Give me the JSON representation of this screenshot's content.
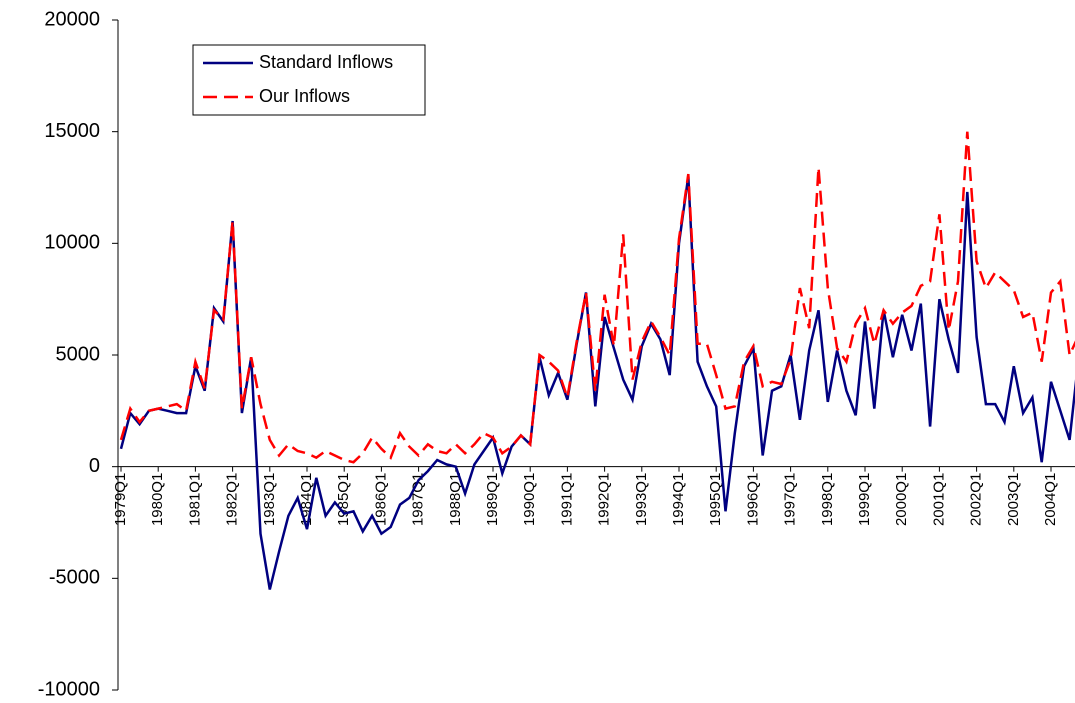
{
  "chart_data": {
    "type": "line",
    "categories": [
      "1979Q1",
      null,
      null,
      null,
      "1980Q1",
      null,
      null,
      null,
      "1981Q1",
      null,
      null,
      null,
      "1982Q1",
      null,
      null,
      null,
      "1983Q1",
      null,
      null,
      null,
      "1984Q1",
      null,
      null,
      null,
      "1985Q1",
      null,
      null,
      null,
      "1986Q1",
      null,
      null,
      null,
      "1987Q1",
      null,
      null,
      null,
      "1988Q1",
      null,
      null,
      null,
      "1989Q1",
      null,
      null,
      null,
      "1990Q1",
      null,
      null,
      null,
      "1991Q1",
      null,
      null,
      null,
      "1992Q1",
      null,
      null,
      null,
      "1993Q1",
      null,
      null,
      null,
      "1994Q1",
      null,
      null,
      null,
      "1995Q1",
      null,
      null,
      null,
      "1996Q1",
      null,
      null,
      null,
      "1997Q1",
      null,
      null,
      null,
      "1998Q1",
      null,
      null,
      null,
      "1999Q1",
      null,
      null,
      null,
      "2000Q1",
      null,
      null,
      null,
      "2001Q1",
      null,
      null,
      null,
      "2002Q1",
      null,
      null,
      null,
      "2003Q1",
      null,
      null,
      null,
      "2004Q1",
      null,
      null,
      null
    ],
    "series": [
      {
        "name": "Standard Inflows",
        "color": "#000080",
        "dash": false,
        "values": [
          800,
          2400,
          1900,
          2500,
          2600,
          2500,
          2400,
          2400,
          4500,
          3400,
          7100,
          6500,
          11000,
          2400,
          4900,
          -3000,
          -5500,
          -3800,
          -2200,
          -1400,
          -2800,
          -500,
          -2200,
          -1600,
          -2100,
          -2000,
          -2900,
          -2200,
          -3000,
          -2700,
          -1700,
          -1400,
          -600,
          -200,
          300,
          100,
          0,
          -1200,
          100,
          700,
          1300,
          -300,
          900,
          1400,
          1000,
          4900,
          3200,
          4200,
          3000,
          5500,
          7800,
          2700,
          6700,
          5300,
          3900,
          3000,
          5400,
          6400,
          5700,
          4100,
          10000,
          13000,
          4700,
          3600,
          2700,
          -2000,
          1500,
          4500,
          5300,
          500,
          3400,
          3600,
          5000,
          2100,
          5200,
          7000,
          2900,
          5200,
          3400,
          2300,
          6500,
          2600,
          7000,
          4900,
          6800,
          5200,
          7300,
          1800,
          7500,
          5700,
          4200,
          12300,
          5800,
          2800,
          2800,
          2000,
          4500,
          2400,
          3100,
          200,
          3800,
          2500,
          1200,
          5000
        ]
      },
      {
        "name": "Our Inflows",
        "color": "#ff0000",
        "dash": true,
        "values": [
          1200,
          2600,
          2000,
          2500,
          2600,
          2700,
          2800,
          2500,
          4700,
          3500,
          7000,
          6600,
          11000,
          2600,
          4900,
          2800,
          1200,
          500,
          1000,
          700,
          600,
          400,
          700,
          500,
          300,
          200,
          600,
          1300,
          800,
          400,
          1500,
          900,
          500,
          1000,
          700,
          600,
          1000,
          600,
          1000,
          1500,
          1300,
          600,
          900,
          1400,
          1000,
          5000,
          4700,
          4300,
          3100,
          5600,
          7800,
          3400,
          7700,
          5400,
          10400,
          3900,
          5600,
          6500,
          5800,
          5000,
          10200,
          13100,
          5500,
          5500,
          4100,
          2600,
          2700,
          4700,
          5400,
          3600,
          3800,
          3700,
          4800,
          8000,
          6200,
          13400,
          8000,
          5300,
          4700,
          6400,
          7100,
          5500,
          7000,
          6400,
          6900,
          7200,
          8100,
          8300,
          11300,
          6100,
          8300,
          15000,
          9200,
          8000,
          8700,
          8300,
          7900,
          6700,
          6900,
          4700,
          7800,
          8300,
          5000,
          5900
        ]
      }
    ],
    "ylim": [
      -10000,
      20000
    ],
    "yticks": [
      -10000,
      -5000,
      0,
      5000,
      10000,
      15000,
      20000
    ]
  }
}
